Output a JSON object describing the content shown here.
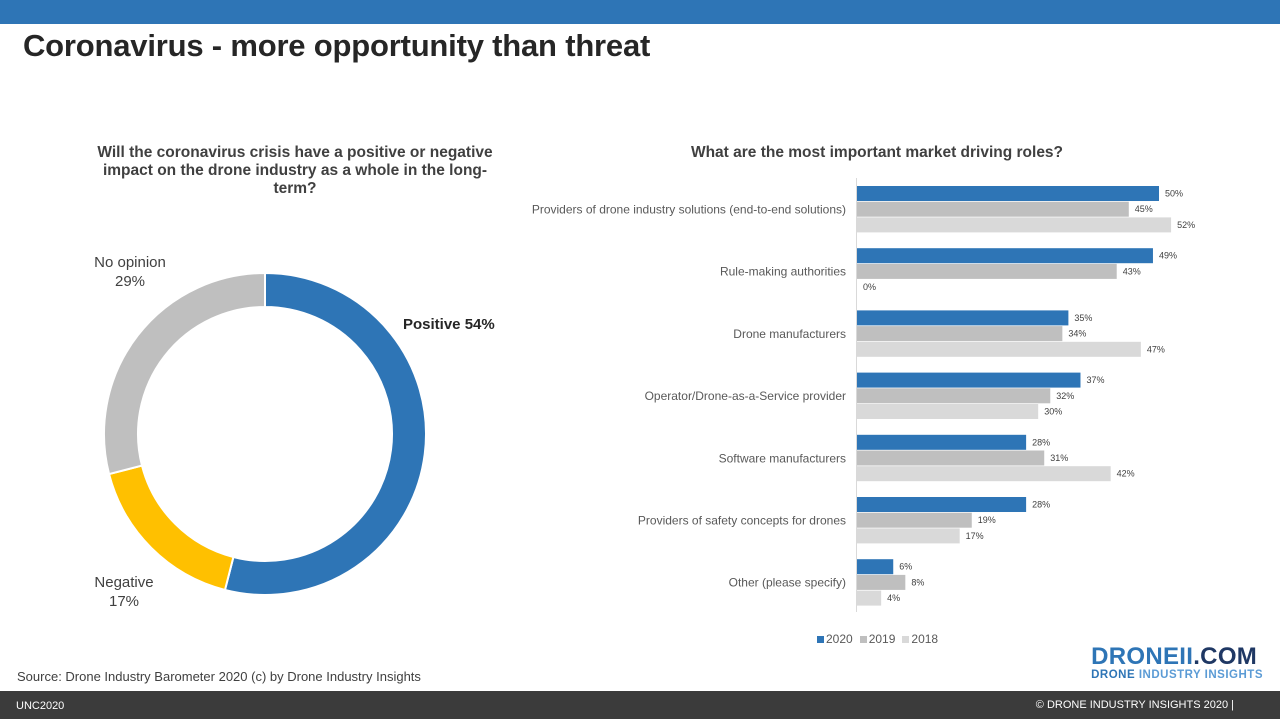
{
  "title": "Coronavirus - more opportunity than threat",
  "chart_data": [
    {
      "type": "pie",
      "title": "Will the coronavirus crisis have a positive or negative impact on the drone industry as a whole in the long-term?",
      "categories": [
        "Positive",
        "Negative",
        "No opinion"
      ],
      "values": [
        54,
        17,
        29
      ],
      "labels": [
        "Positive 54%",
        "Negative",
        "17%",
        "No opinion",
        "29%"
      ],
      "colors": [
        "#2e75b6",
        "#ffc000",
        "#bfbfbf"
      ],
      "donut": true
    },
    {
      "type": "bar",
      "orientation": "horizontal",
      "title": "What are the most important market driving roles?",
      "categories": [
        "Providers of drone industry solutions (end-to-end solutions)",
        "Rule-making authorities",
        "Drone manufacturers",
        "Operator/Drone-as-a-Service provider",
        "Software manufacturers",
        "Providers of safety concepts for drones",
        "Other (please specify)"
      ],
      "series": [
        {
          "name": "2020",
          "color": "#2e75b6",
          "values": [
            50,
            49,
            35,
            37,
            28,
            28,
            6
          ]
        },
        {
          "name": "2019",
          "color": "#bfbfbf",
          "values": [
            45,
            43,
            34,
            32,
            31,
            19,
            8
          ]
        },
        {
          "name": "2018",
          "color": "#d9d9d9",
          "values": [
            52,
            0,
            47,
            30,
            42,
            17,
            4
          ]
        }
      ],
      "value_suffix": "%",
      "legend": "bottom",
      "grid": false
    }
  ],
  "source": "Source: Drone Industry Barometer  2020 (c) by Drone Industry Insights",
  "logo": {
    "main": "DRONEII",
    "dot": ".COM",
    "sub_first": "DRONE",
    "sub_rest": " INDUSTRY INSIGHTS"
  },
  "footer": {
    "left": "UNC2020",
    "right": "© DRONE INDUSTRY INSIGHTS 2020  |"
  }
}
